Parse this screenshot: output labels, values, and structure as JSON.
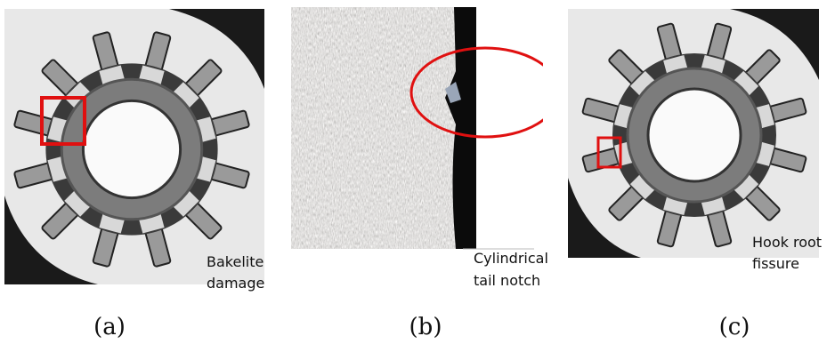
{
  "panels": [
    {
      "label": "(a)",
      "annotation": [
        "Bakelite",
        "damage"
      ]
    },
    {
      "label": "(b)",
      "annotation": [
        "Cylindrical",
        "tail notch"
      ]
    },
    {
      "label": "(c)",
      "annotation": [
        "Hook root",
        "fissure"
      ]
    }
  ]
}
